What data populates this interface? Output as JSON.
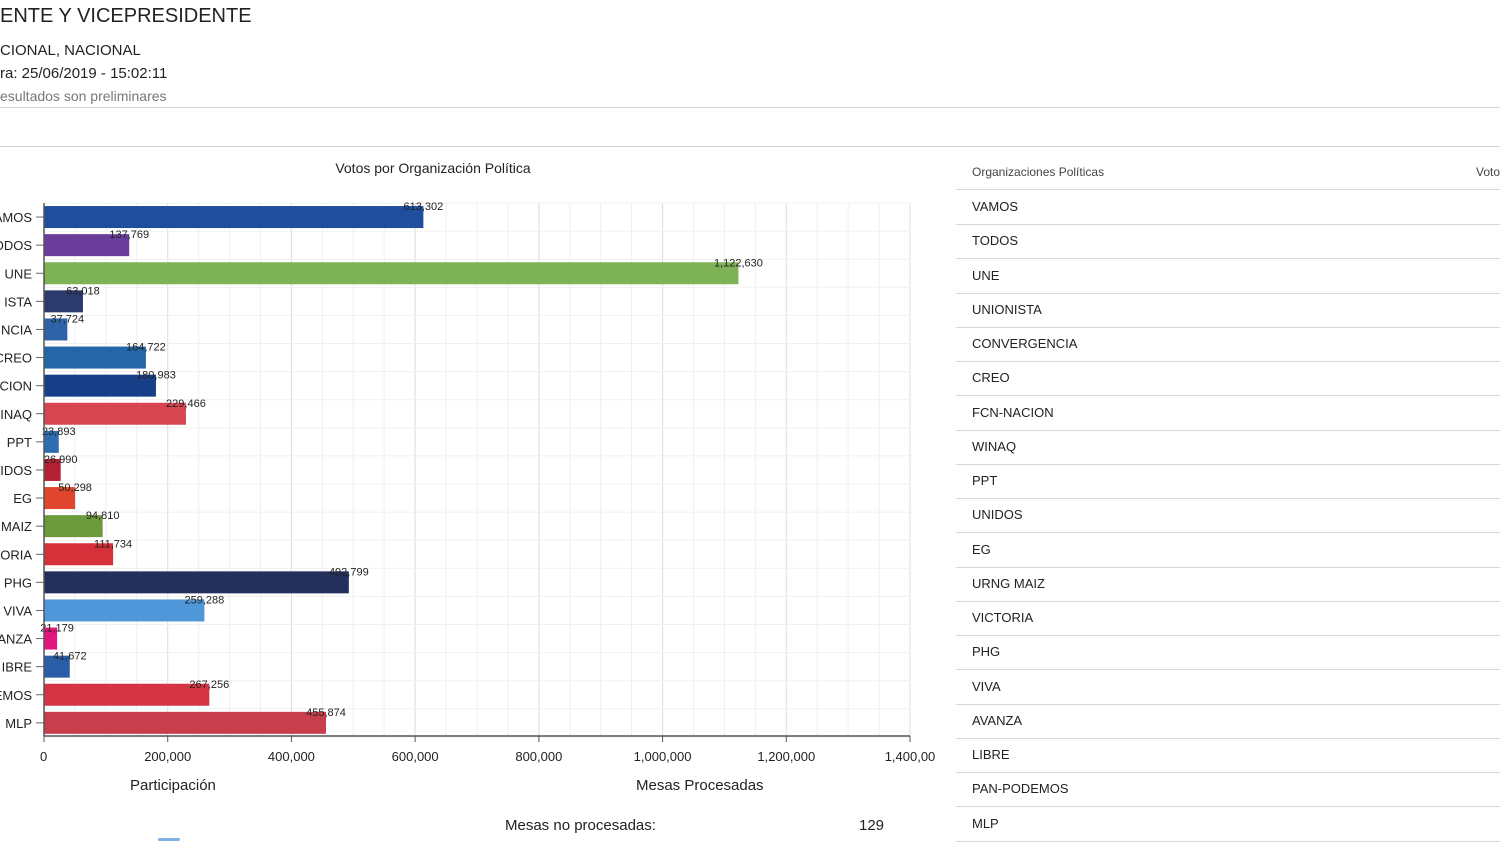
{
  "header": {
    "title": "ENTE Y VICEPRESIDENTE",
    "subtitle": "CIONAL, NACIONAL",
    "datetime": "ra: 25/06/2019 - 15:02:11",
    "note": "esultados son preliminares"
  },
  "table": {
    "col_org": "Organizaciones Políticas",
    "col_votes": "Voto",
    "rows": [
      "VAMOS",
      "TODOS",
      "UNE",
      "UNIONISTA",
      "CONVERGENCIA",
      "CREO",
      "FCN-NACION",
      "WINAQ",
      "PPT",
      "UNIDOS",
      "EG",
      "URNG MAIZ",
      "VICTORIA",
      "PHG",
      "VIVA",
      "AVANZA",
      "LIBRE",
      "PAN-PODEMOS",
      "MLP"
    ]
  },
  "footer": {
    "participacion": "Participación",
    "mesas_procesadas": "Mesas Procesadas",
    "mesas_no_label": "Mesas no procesadas:",
    "mesas_no_value": "129"
  },
  "chart_data": {
    "type": "bar",
    "orientation": "horizontal",
    "title": "Votos por Organización Política",
    "categories": [
      "AMOS",
      "ODOS",
      "UNE",
      "ISTA",
      "NCIA",
      "CREO",
      "CION",
      "INAQ",
      "PPT",
      "IDOS",
      "EG",
      "MAIZ",
      "ORIA",
      "PHG",
      "VIVA",
      "ANZA",
      "IBRE",
      "EMOS",
      "MLP"
    ],
    "values": [
      613302,
      137769,
      1122630,
      63018,
      37724,
      164722,
      180983,
      229466,
      23893,
      26990,
      50298,
      94810,
      111734,
      492799,
      259288,
      21179,
      41672,
      267256,
      455874
    ],
    "value_labels": [
      "613,302",
      "137,769",
      "1,122,630",
      "63,018",
      "37,724",
      "164,722",
      "180,983",
      "229,466",
      "23,893",
      "26,990",
      "50,298",
      "94,810",
      "111,734",
      "492,799",
      "259,288",
      "21,179",
      "41,672",
      "267,256",
      "455,874"
    ],
    "colors": [
      "#1f4e9c",
      "#6a3d9a",
      "#7db356",
      "#2c3a6e",
      "#2e63a8",
      "#2466a8",
      "#173f88",
      "#d64550",
      "#2e6db0",
      "#b52032",
      "#e0452d",
      "#6e9a3e",
      "#d6303a",
      "#242f5c",
      "#4f97d8",
      "#e4157f",
      "#2b5ea8",
      "#d63345",
      "#c83e4d"
    ],
    "xlim": [
      0,
      1400000
    ],
    "xticks": [
      "0",
      "200,000",
      "400,000",
      "600,000",
      "800,000",
      "1,000,000",
      "1,200,000",
      "1,400,00"
    ],
    "xlabel": "",
    "ylabel": "",
    "grid": true
  }
}
